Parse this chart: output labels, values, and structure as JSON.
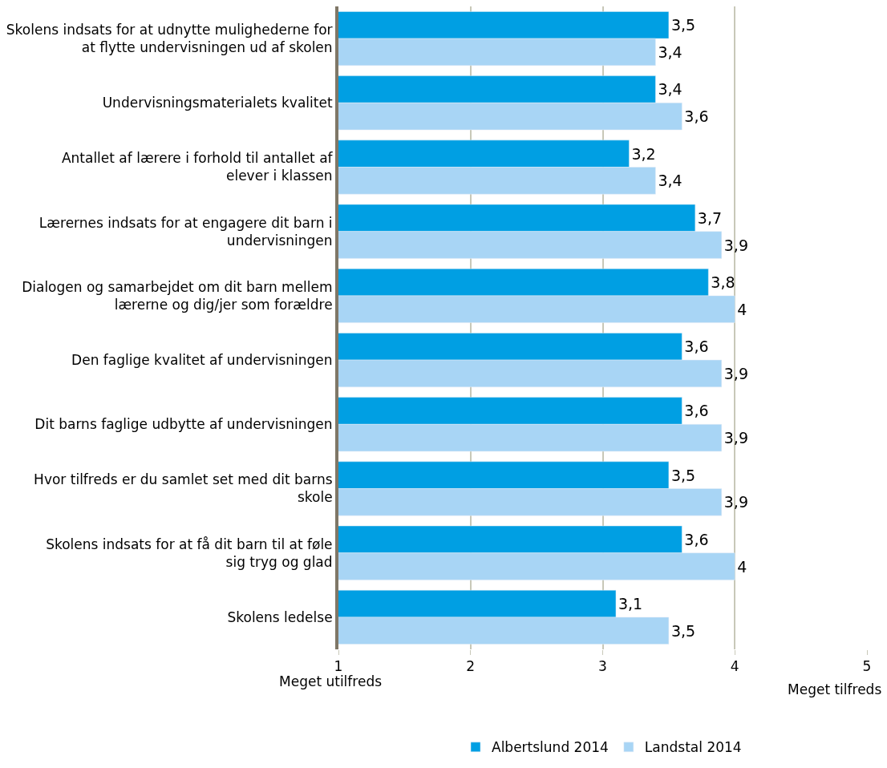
{
  "chart_data": {
    "type": "bar",
    "orientation": "horizontal",
    "categories": [
      "Skolens indsats for at udnytte mulighederne for at flytte undervisningen ud af skolen",
      "Undervisningsmaterialets kvalitet",
      "Antallet af lærere i forhold til antallet af elever i klassen",
      "Lærernes indsats for at engagere dit barn i undervisningen",
      "Dialogen og samarbejdet om dit barn mellem lærerne og dig/jer som forældre",
      "Den faglige kvalitet af undervisningen",
      "Dit barns faglige udbytte af undervisningen",
      "Hvor tilfreds er du samlet set med dit barns skole",
      "Skolens indsats for at få dit barn til at føle sig tryg og glad",
      "Skolens ledelse"
    ],
    "series": [
      {
        "name": "Albertslund 2014",
        "color": "#009fe3",
        "values": [
          3.5,
          3.4,
          3.2,
          3.7,
          3.8,
          3.6,
          3.6,
          3.5,
          3.6,
          3.1
        ],
        "value_labels": [
          "3,5",
          "3,4",
          "3,2",
          "3,7",
          "3,8",
          "3,6",
          "3,6",
          "3,5",
          "3,6",
          "3,1"
        ]
      },
      {
        "name": "Landstal 2014",
        "color": "#a8d5f5",
        "values": [
          3.4,
          3.6,
          3.4,
          3.9,
          4,
          3.9,
          3.9,
          3.9,
          4,
          3.5
        ],
        "value_labels": [
          "3,4",
          "3,6",
          "3,4",
          "3,9",
          "4",
          "3,9",
          "3,9",
          "3,9",
          "4",
          "3,5"
        ]
      }
    ],
    "xlim": [
      1,
      5
    ],
    "xticks": [
      1,
      2,
      3,
      4,
      5
    ],
    "grid": "x",
    "legend": "bottom",
    "annotations": [
      "Meget utilfreds",
      "Meget tilfreds"
    ]
  }
}
